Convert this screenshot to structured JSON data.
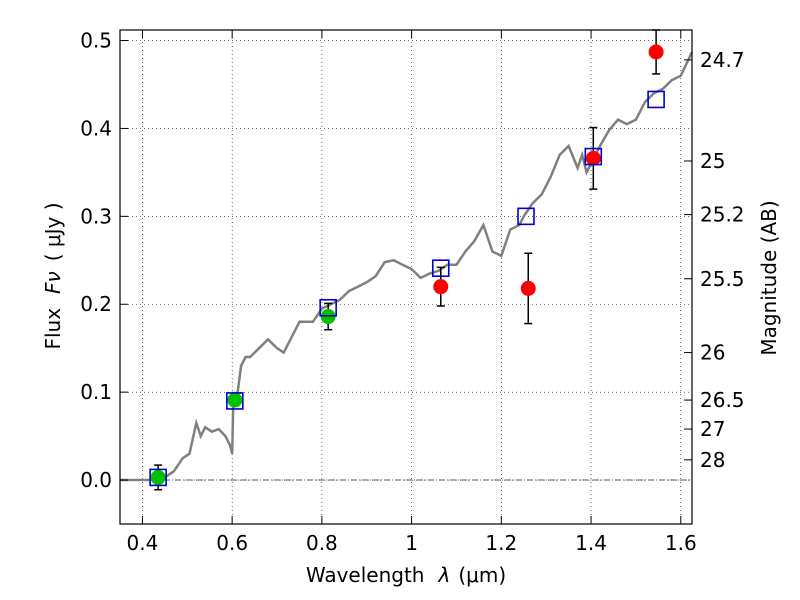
{
  "chart_data": {
    "type": "scatter",
    "xlabel_text": "Wavelength",
    "xlabel_symbol": "λ",
    "xlabel_unit": "(μm)",
    "ylabel_text": "Flux",
    "ylabel_symbol": "Fν",
    "ylabel_unit": "( μJy )",
    "y2label": "Magnitude (AB)",
    "xlim": [
      0.35,
      1.625
    ],
    "ylim": [
      -0.05,
      0.512
    ],
    "x_ticks": [
      0.4,
      0.6,
      0.8,
      1.0,
      1.2,
      1.4,
      1.6
    ],
    "x_tick_labels": [
      "0.4",
      "0.6",
      "0.8",
      "1",
      "1.2",
      "1.4",
      "1.6"
    ],
    "y_ticks": [
      0.0,
      0.1,
      0.2,
      0.3,
      0.4,
      0.5
    ],
    "y_tick_labels": [
      "0.0",
      "0.1",
      "0.2",
      "0.3",
      "0.4",
      "0.5"
    ],
    "y2_ticks": [
      {
        "label": "24.7",
        "flux": 0.478
      },
      {
        "label": "25",
        "flux": 0.363
      },
      {
        "label": "25.2",
        "flux": 0.302
      },
      {
        "label": "25.5",
        "flux": 0.229
      },
      {
        "label": "26",
        "flux": 0.145
      },
      {
        "label": "26.5",
        "flux": 0.091
      },
      {
        "label": "27",
        "flux": 0.058
      },
      {
        "label": "28",
        "flux": 0.023
      }
    ],
    "grid": true,
    "colors": {
      "model": "#808080",
      "green": "#00c000",
      "red": "#ff0000",
      "blue": "#0000cc",
      "errorbar": "#000000",
      "zero_line": "#555555"
    },
    "series": [
      {
        "marker": "green-circle",
        "points": [
          {
            "x": 0.435,
            "y": 0.003,
            "err": 0.014
          },
          {
            "x": 0.606,
            "y": 0.091,
            "err": 0.006
          },
          {
            "x": 0.814,
            "y": 0.186,
            "err": 0.015
          }
        ]
      },
      {
        "marker": "red-circle",
        "points": [
          {
            "x": 1.065,
            "y": 0.22,
            "err": 0.022
          },
          {
            "x": 1.26,
            "y": 0.218,
            "err": 0.04
          },
          {
            "x": 1.405,
            "y": 0.366,
            "err": 0.035
          },
          {
            "x": 1.545,
            "y": 0.487,
            "err": 0.025
          }
        ]
      },
      {
        "marker": "blue-square",
        "points": [
          {
            "x": 0.435,
            "y": 0.003
          },
          {
            "x": 0.606,
            "y": 0.09
          },
          {
            "x": 0.814,
            "y": 0.196
          },
          {
            "x": 1.065,
            "y": 0.241
          },
          {
            "x": 1.255,
            "y": 0.3
          },
          {
            "x": 1.405,
            "y": 0.368
          },
          {
            "x": 1.545,
            "y": 0.433
          }
        ]
      }
    ],
    "model_spectrum": [
      [
        0.35,
        0.0
      ],
      [
        0.43,
        0.0
      ],
      [
        0.45,
        0.003
      ],
      [
        0.47,
        0.01
      ],
      [
        0.49,
        0.025
      ],
      [
        0.505,
        0.03
      ],
      [
        0.52,
        0.065
      ],
      [
        0.53,
        0.05
      ],
      [
        0.54,
        0.06
      ],
      [
        0.555,
        0.055
      ],
      [
        0.57,
        0.058
      ],
      [
        0.585,
        0.05
      ],
      [
        0.595,
        0.04
      ],
      [
        0.6,
        0.03
      ],
      [
        0.603,
        0.1
      ],
      [
        0.61,
        0.09
      ],
      [
        0.62,
        0.13
      ],
      [
        0.63,
        0.14
      ],
      [
        0.64,
        0.14
      ],
      [
        0.66,
        0.15
      ],
      [
        0.68,
        0.16
      ],
      [
        0.7,
        0.15
      ],
      [
        0.715,
        0.145
      ],
      [
        0.73,
        0.16
      ],
      [
        0.75,
        0.18
      ],
      [
        0.765,
        0.18
      ],
      [
        0.78,
        0.18
      ],
      [
        0.8,
        0.195
      ],
      [
        0.82,
        0.2
      ],
      [
        0.84,
        0.205
      ],
      [
        0.86,
        0.215
      ],
      [
        0.88,
        0.22
      ],
      [
        0.9,
        0.225
      ],
      [
        0.92,
        0.232
      ],
      [
        0.94,
        0.248
      ],
      [
        0.96,
        0.25
      ],
      [
        0.98,
        0.245
      ],
      [
        1.0,
        0.24
      ],
      [
        1.02,
        0.23
      ],
      [
        1.04,
        0.235
      ],
      [
        1.06,
        0.238
      ],
      [
        1.08,
        0.245
      ],
      [
        1.1,
        0.245
      ],
      [
        1.12,
        0.26
      ],
      [
        1.14,
        0.272
      ],
      [
        1.16,
        0.29
      ],
      [
        1.18,
        0.26
      ],
      [
        1.2,
        0.255
      ],
      [
        1.22,
        0.285
      ],
      [
        1.24,
        0.29
      ],
      [
        1.25,
        0.3
      ],
      [
        1.27,
        0.315
      ],
      [
        1.29,
        0.325
      ],
      [
        1.31,
        0.345
      ],
      [
        1.33,
        0.37
      ],
      [
        1.35,
        0.38
      ],
      [
        1.37,
        0.355
      ],
      [
        1.38,
        0.37
      ],
      [
        1.39,
        0.35
      ],
      [
        1.4,
        0.36
      ],
      [
        1.42,
        0.38
      ],
      [
        1.44,
        0.398
      ],
      [
        1.46,
        0.41
      ],
      [
        1.48,
        0.405
      ],
      [
        1.5,
        0.41
      ],
      [
        1.52,
        0.43
      ],
      [
        1.54,
        0.44
      ],
      [
        1.56,
        0.445
      ],
      [
        1.58,
        0.455
      ],
      [
        1.6,
        0.46
      ],
      [
        1.625,
        0.487
      ]
    ]
  }
}
